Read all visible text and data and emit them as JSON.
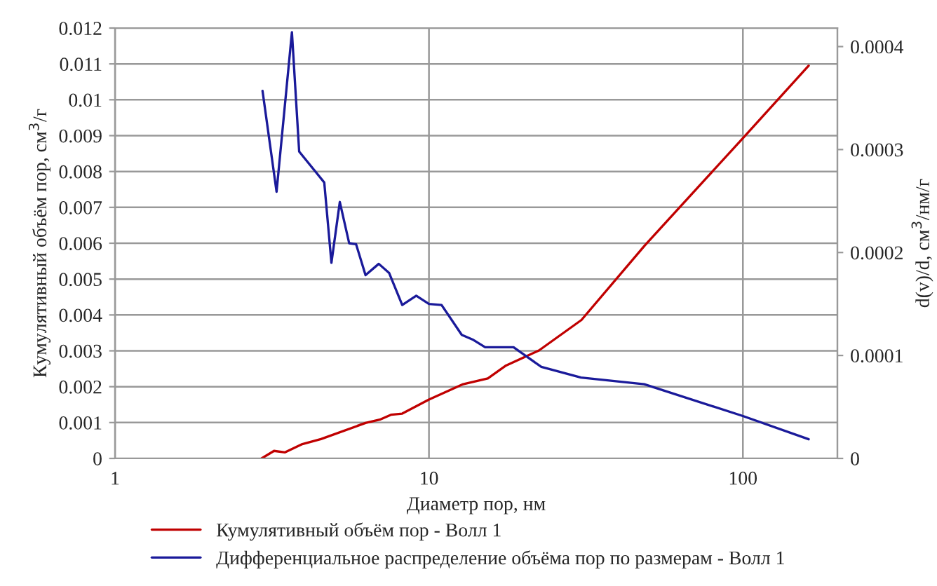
{
  "chart_data": {
    "type": "line",
    "xlabel": "Диаметр пор, нм",
    "ylabel": "Кумулятивный объём пор, см$^{3}$/г",
    "y2label": "d(v)/d, см$^{3}$/нм/г",
    "log": "x",
    "grid": true,
    "legend": "bottom",
    "marker": "none",
    "line_style": "solid",
    "xlim": [
      1,
      200
    ],
    "xticks": [
      1,
      10,
      100
    ],
    "ylim": [
      0,
      0.012
    ],
    "yticks": [
      0,
      0.001,
      0.002,
      0.003,
      0.004,
      0.005,
      0.006,
      0.007,
      0.008,
      0.009,
      0.01,
      0.011,
      0.012
    ],
    "y2lim": [
      0,
      0.000418
    ],
    "y2ticks": [
      0,
      0.0001,
      0.0002,
      0.0003,
      0.0004
    ],
    "series": [
      {
        "name": "Кумулятивный объём пор - Волл 1",
        "color": "#c00000",
        "x": [
          2.93,
          3.21,
          3.48,
          3.95,
          4.53,
          6.28,
          6.97,
          7.59,
          8.22,
          10,
          12.85,
          15.4,
          17.6,
          22.4,
          30.6,
          48.7,
          100,
          162
        ],
        "values": [
          0,
          0.00021,
          0.00017,
          0.0004,
          0.00054,
          0.00099,
          0.00108,
          0.00122,
          0.00125,
          0.00164,
          0.00207,
          0.00223,
          0.00259,
          0.00301,
          0.00386,
          0.00594,
          0.00893,
          0.01095
        ]
      },
      {
        "name": "Дифференциальное распределение объёма пор по размерам - Волл 1",
        "color": "#1a1a9a",
        "axis": "y2",
        "x": [
          2.95,
          3.27,
          3.66,
          3.86,
          4.64,
          4.89,
          5.2,
          5.57,
          5.86,
          6.28,
          6.92,
          7.47,
          8.22,
          9.11,
          10,
          10.97,
          12.72,
          13.87,
          15.1,
          18.6,
          22.8,
          30.5,
          48.5,
          100,
          162
        ],
        "values": [
          0.000357,
          0.000259,
          0.000414,
          0.000298,
          0.000268,
          0.00019,
          0.000249,
          0.000209,
          0.000208,
          0.000178,
          0.000189,
          0.00018,
          0.000149,
          0.000158,
          0.00015,
          0.000149,
          0.00012,
          0.000115,
          0.000108,
          0.000108,
          8.89e-05,
          7.85e-05,
          7.21e-05,
          4.12e-05,
          1.86e-05
        ]
      }
    ]
  }
}
